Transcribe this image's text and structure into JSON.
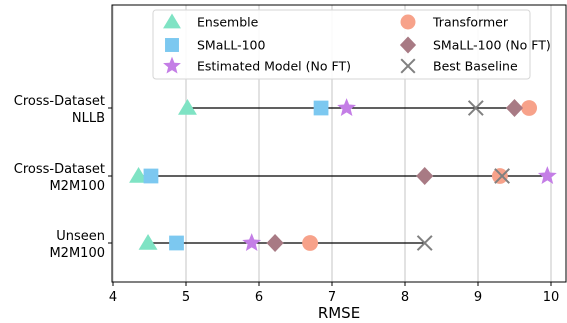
{
  "chart_data": {
    "type": "scatter",
    "xlabel": "RMSE",
    "ylabel": "",
    "xlim": [
      4,
      10.2
    ],
    "x_ticks": [
      4,
      5,
      6,
      7,
      8,
      9,
      10
    ],
    "grid": "vertical",
    "legend_position": "top",
    "categories": [
      {
        "id": "nllb",
        "lines": [
          "Cross-Dataset",
          "NLLB"
        ]
      },
      {
        "id": "m2m",
        "lines": [
          "Cross-Dataset",
          "M2M100"
        ]
      },
      {
        "id": "unseen",
        "lines": [
          "Unseen",
          "M2M100"
        ]
      }
    ],
    "series": [
      {
        "name": "Ensemble",
        "marker": "triangle",
        "color": "#7fe3c4",
        "values": [
          5.02,
          4.35,
          4.48
        ]
      },
      {
        "name": "SMaLL-100",
        "marker": "square",
        "color": "#7cc8f0",
        "values": [
          6.85,
          4.52,
          4.87
        ]
      },
      {
        "name": "Estimated Model (No FT)",
        "marker": "star",
        "color": "#c47ee6",
        "values": [
          7.2,
          9.95,
          5.9
        ]
      },
      {
        "name": "Transformer",
        "marker": "circle",
        "color": "#f7a28a",
        "values": [
          9.7,
          9.3,
          6.7
        ]
      },
      {
        "name": "SMaLL-100 (No FT)",
        "marker": "diamond",
        "color": "#a87a84",
        "values": [
          9.5,
          8.27,
          6.22
        ]
      },
      {
        "name": "Best Baseline",
        "marker": "x",
        "color": "#808080",
        "values": [
          8.97,
          9.33,
          8.27
        ]
      }
    ],
    "legend_order": [
      0,
      1,
      2,
      3,
      4,
      5
    ]
  }
}
